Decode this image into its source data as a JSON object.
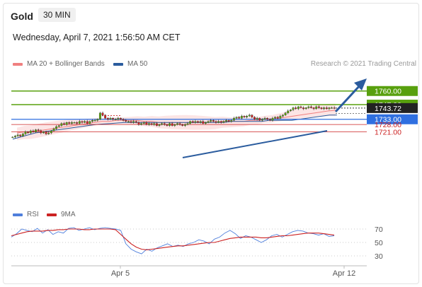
{
  "header": {
    "title": "Gold",
    "timeframe": "30 MIN",
    "date": "Wednesday, April 7, 2021 1:56:50 AM CET"
  },
  "legend": {
    "ma20": {
      "label": "MA 20 + Bollinger Bands",
      "color": "#f08080"
    },
    "ma50": {
      "label": "MA 50",
      "color": "#2b5c9e"
    },
    "credit": "Research © 2021 Trading Central"
  },
  "rsi_legend": {
    "rsi": {
      "label": "RSI",
      "color": "#4f7fdc"
    },
    "ma9": {
      "label": "9MA",
      "color": "#cc2222"
    }
  },
  "colors": {
    "green": "#58a00e",
    "blue": "#2f6fe0",
    "red": "#cc2222",
    "dark": "#222222",
    "arrow": "#2b5c9e"
  },
  "chart_data": [
    {
      "type": "candlestick",
      "title": "Gold",
      "ylim": [
        1714,
        1764
      ],
      "x_tick_labels": [
        "Apr 5",
        "Apr 12"
      ],
      "price_levels": [
        {
          "value": 1760.0,
          "label": "1760.00",
          "style": "green",
          "kind": "target"
        },
        {
          "value": 1747.0,
          "label": "1747.00",
          "style": "green",
          "kind": "resistance"
        },
        {
          "value": 1743.72,
          "label": "1743.72",
          "style": "dark",
          "kind": "last price"
        },
        {
          "value": 1733.0,
          "label": "1733.00",
          "style": "blue",
          "kind": "pivot"
        },
        {
          "value": 1728.0,
          "label": "1728.00",
          "style": "red",
          "kind": "support"
        },
        {
          "value": 1721.0,
          "label": "1721.00",
          "style": "red",
          "kind": "support"
        }
      ],
      "close_series": [
        1716,
        1717,
        1718,
        1717,
        1719,
        1721,
        1720,
        1722,
        1721,
        1723,
        1722,
        1720,
        1721,
        1719,
        1720,
        1722,
        1724,
        1726,
        1727,
        1729,
        1728,
        1730,
        1729,
        1730,
        1730,
        1729,
        1731,
        1730,
        1731,
        1729,
        1731,
        1732,
        1732,
        1733,
        1739,
        1737,
        1734,
        1733,
        1734,
        1733,
        1733,
        1734,
        1733,
        1732,
        1731,
        1731,
        1730,
        1731,
        1730,
        1728,
        1729,
        1730,
        1728,
        1729,
        1728,
        1729,
        1727,
        1728,
        1729,
        1728,
        1727,
        1729,
        1727,
        1728,
        1729,
        1728,
        1727,
        1728,
        1729,
        1731,
        1730,
        1731,
        1730,
        1731,
        1729,
        1730,
        1731,
        1732,
        1731,
        1730,
        1731,
        1730,
        1731,
        1732,
        1731,
        1732,
        1734,
        1735,
        1734,
        1736,
        1735,
        1736,
        1737,
        1735,
        1733,
        1734,
        1732,
        1733,
        1734,
        1733,
        1732,
        1734,
        1735,
        1734,
        1736,
        1737,
        1739,
        1741,
        1742,
        1744,
        1743,
        1745,
        1744,
        1743,
        1744,
        1745,
        1744,
        1743,
        1745,
        1744,
        1743,
        1744,
        1743,
        1744,
        1744,
        1743.72
      ],
      "ma20": [
        1720,
        1721,
        1721,
        1722,
        1723,
        1724,
        1725,
        1726,
        1727,
        1728,
        1729,
        1730,
        1731,
        1731,
        1732,
        1732,
        1732,
        1732,
        1731,
        1731,
        1730,
        1730,
        1730,
        1730,
        1730,
        1730,
        1730,
        1730,
        1730,
        1731,
        1731,
        1731,
        1731,
        1732,
        1732,
        1733,
        1733,
        1734,
        1735,
        1736,
        1737,
        1738,
        1739,
        1740,
        1741,
        1741.5
      ],
      "ma50": [
        1714,
        1716,
        1718,
        1720,
        1721,
        1722,
        1723,
        1724,
        1725,
        1726,
        1727,
        1728,
        1728.5,
        1729,
        1729.5,
        1730,
        1730,
        1730,
        1730,
        1730,
        1730,
        1730,
        1730,
        1730,
        1730,
        1730,
        1730,
        1730,
        1730,
        1731,
        1731,
        1731,
        1731,
        1731,
        1732,
        1732,
        1732,
        1732,
        1733,
        1734,
        1735,
        1736,
        1737,
        1737
      ],
      "trendlines": [
        {
          "from": [
            "Apr 6",
            1727
          ],
          "to": [
            "Apr 8",
            1734
          ]
        },
        {
          "from": [
            "Apr 8",
            1744
          ],
          "to": [
            "Apr 9",
            1760
          ],
          "kind": "arrow"
        }
      ]
    },
    {
      "type": "line",
      "title": "RSI",
      "ylim": [
        20,
        80
      ],
      "y_ticks": [
        70,
        50,
        30
      ],
      "series": [
        {
          "name": "RSI",
          "values": [
            58,
            63,
            70,
            68,
            66,
            71,
            64,
            69,
            62,
            66,
            64,
            71,
            72,
            68,
            70,
            72,
            69,
            71,
            72,
            71,
            70,
            68,
            48,
            40,
            36,
            33,
            40,
            37,
            42,
            45,
            48,
            44,
            46,
            44,
            48,
            50,
            54,
            52,
            48,
            55,
            58,
            64,
            68,
            63,
            56,
            60,
            58,
            54,
            50,
            54,
            60,
            62,
            58,
            62,
            66,
            68,
            67,
            64,
            63,
            61,
            63,
            59,
            60
          ]
        },
        {
          "name": "9MA",
          "values": [
            60,
            62,
            64,
            66,
            67,
            67,
            67,
            68,
            68,
            69,
            69,
            70,
            70,
            70,
            69,
            69,
            70,
            70,
            70,
            70,
            69,
            62,
            55,
            48,
            43,
            40,
            39,
            40,
            41,
            42,
            43,
            44,
            45,
            45,
            46,
            47,
            48,
            49,
            50,
            50,
            52,
            54,
            56,
            57,
            58,
            58,
            58,
            58,
            57,
            57,
            58,
            59,
            60,
            60,
            61,
            62,
            63,
            64,
            64,
            64,
            63,
            62,
            61
          ]
        }
      ]
    }
  ]
}
